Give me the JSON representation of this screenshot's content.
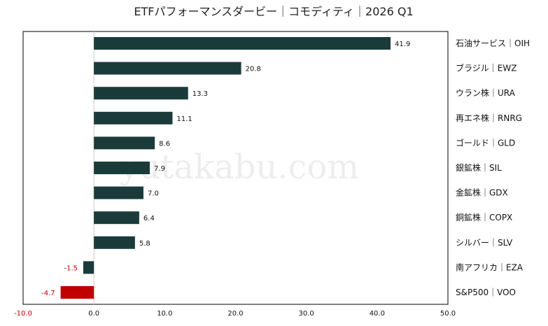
{
  "chart_data": {
    "type": "bar",
    "orientation": "horizontal",
    "title": "ETFパフォーマンスダービー｜コモディティ｜2026 Q1",
    "categories": [
      "石油サービス｜OIH",
      "ブラジル｜EWZ",
      "ウラン株｜URA",
      "再エネ株｜RNRG",
      "ゴールド｜GLD",
      "銀鉱株｜SIL",
      "金鉱株｜GDX",
      "銅鉱株｜COPX",
      "シルバー｜SLV",
      "南アフリカ｜EZA",
      "S&P500｜VOO"
    ],
    "values": [
      41.9,
      20.8,
      13.3,
      11.1,
      8.6,
      7.9,
      7.0,
      6.4,
      5.8,
      -1.5,
      -4.7
    ],
    "value_labels": [
      "41.9",
      "20.8",
      "13.3",
      "11.1",
      "8.6",
      "7.9",
      "7.0",
      "6.4",
      "5.8",
      "-1.5",
      "-4.7"
    ],
    "xlim": [
      -10,
      50
    ],
    "xticks": [
      "-10.0",
      "0.0",
      "10.0",
      "20.0",
      "30.0",
      "40.0",
      "50.0"
    ],
    "xtick_values": [
      -10,
      0,
      10,
      20,
      30,
      40,
      50
    ],
    "highlight_category": "S&P500｜VOO",
    "legend": "none",
    "grid": false,
    "colors": {
      "bar": "#1b3b3b",
      "bar_highlight": "#c00000",
      "negative_text": "#c00000",
      "text": "#111111"
    }
  },
  "watermark": "yutakabu.com"
}
